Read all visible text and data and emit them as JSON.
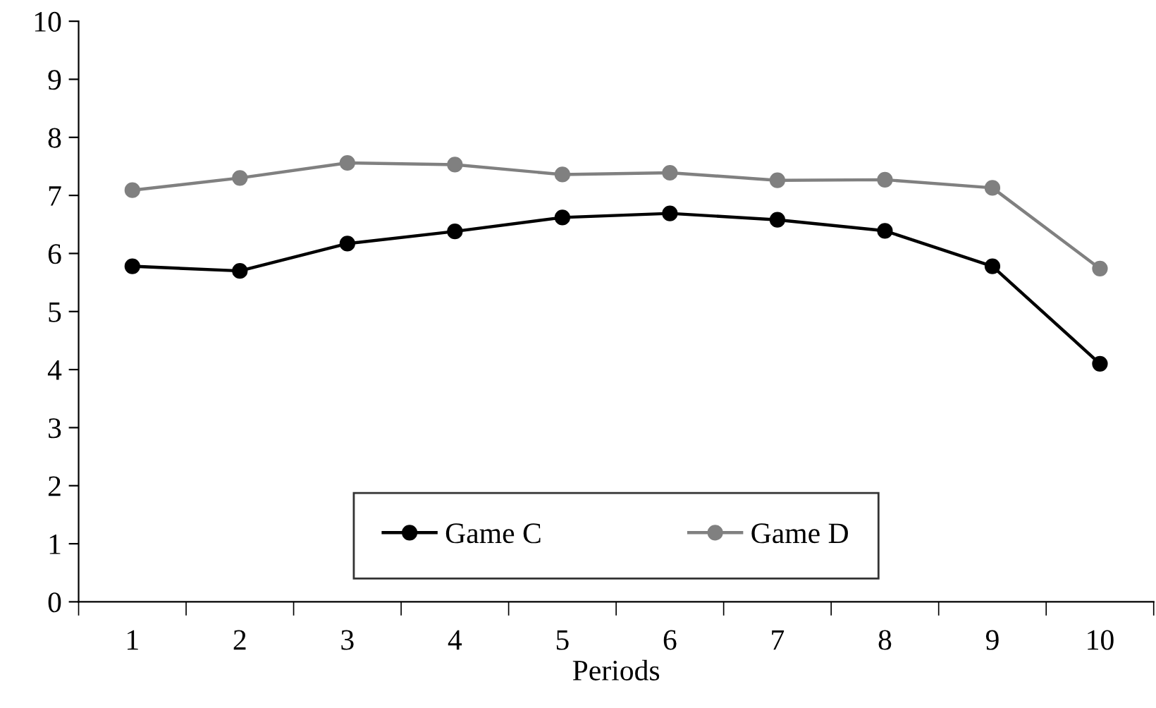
{
  "chart_data": {
    "type": "line",
    "xlabel": "Periods",
    "categories": [
      "1",
      "2",
      "3",
      "4",
      "5",
      "6",
      "7",
      "8",
      "9",
      "10"
    ],
    "series": [
      {
        "name": "Game C",
        "color": "#000000",
        "values": [
          5.78,
          5.7,
          6.17,
          6.38,
          6.62,
          6.69,
          6.58,
          6.39,
          5.78,
          4.1
        ]
      },
      {
        "name": "Game D",
        "color": "#808080",
        "values": [
          7.09,
          7.3,
          7.56,
          7.53,
          7.36,
          7.39,
          7.26,
          7.27,
          7.13,
          5.74
        ]
      }
    ],
    "ylim": [
      0,
      10
    ],
    "yticks": [
      0,
      1,
      2,
      3,
      4,
      5,
      6,
      7,
      8,
      9,
      10
    ],
    "grid": false,
    "legend": "bottom",
    "marker": "circle",
    "line_style": "solid"
  }
}
